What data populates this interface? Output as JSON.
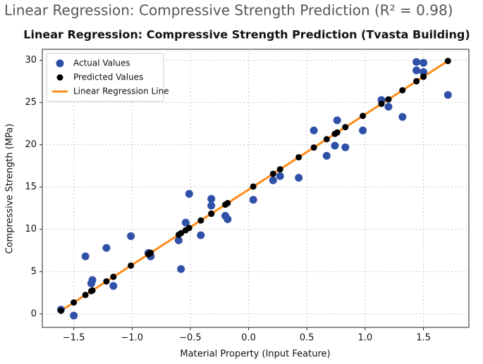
{
  "heading": "Linear Regression: Compressive Strength Prediction (R² = 0.98)",
  "chart_data": {
    "type": "scatter",
    "title": "Linear Regression: Compressive Strength Prediction (Tvasta Building)",
    "x_label": "Material Property (Input Feature)",
    "y_label": "Compressive Strength (MPa)",
    "xlim": [
      -1.77,
      1.89
    ],
    "ylim": [
      -1.6,
      31.3
    ],
    "xticks": [
      {
        "value": -1.5,
        "label": "−1.5"
      },
      {
        "value": -1.0,
        "label": "−1.0"
      },
      {
        "value": -0.5,
        "label": "−0.5"
      },
      {
        "value": 0.0,
        "label": "0.0"
      },
      {
        "value": 0.5,
        "label": "0.5"
      },
      {
        "value": 1.0,
        "label": "1.0"
      },
      {
        "value": 1.5,
        "label": "1.5"
      }
    ],
    "yticks": [
      0,
      5,
      10,
      15,
      20,
      25,
      30
    ],
    "grid": true,
    "legend": "upper-left",
    "series": [
      {
        "name": "Actual Values",
        "type": "scatter",
        "color": "#2f50a8",
        "x": [
          -1.61,
          -1.5,
          -1.4,
          -1.35,
          -1.34,
          -1.22,
          -1.16,
          -1.01,
          -0.86,
          -0.84,
          -0.6,
          -0.58,
          -0.54,
          -0.51,
          -0.41,
          -0.32,
          -0.32,
          -0.2,
          -0.18,
          0.04,
          0.21,
          0.27,
          0.43,
          0.56,
          0.67,
          0.74,
          0.76,
          0.83,
          0.98,
          1.14,
          1.2,
          1.32,
          1.44,
          1.44,
          1.5,
          1.5,
          1.71
        ],
        "values": [
          0.5,
          -0.2,
          6.8,
          3.6,
          4.0,
          7.8,
          3.3,
          9.2,
          7.2,
          6.8,
          8.7,
          5.3,
          10.8,
          14.2,
          9.3,
          13.6,
          12.8,
          11.6,
          11.2,
          13.5,
          15.8,
          16.3,
          16.1,
          21.7,
          18.7,
          19.9,
          22.9,
          19.7,
          21.7,
          25.3,
          24.5,
          23.3,
          29.8,
          28.8,
          29.7,
          28.6,
          25.9
        ]
      },
      {
        "name": "Predicted Values",
        "type": "scatter",
        "color": "#000000",
        "x": [
          -1.61,
          -1.5,
          -1.4,
          -1.35,
          -1.34,
          -1.22,
          -1.16,
          -1.01,
          -0.86,
          -0.84,
          -0.6,
          -0.58,
          -0.54,
          -0.51,
          -0.41,
          -0.32,
          -0.32,
          -0.2,
          -0.18,
          0.04,
          0.21,
          0.27,
          0.43,
          0.56,
          0.67,
          0.74,
          0.76,
          0.83,
          0.98,
          1.14,
          1.2,
          1.32,
          1.44,
          1.44,
          1.5,
          1.5,
          1.71
        ],
        "values": [
          0.37,
          1.35,
          2.24,
          2.69,
          2.77,
          3.84,
          4.38,
          5.71,
          7.05,
          7.22,
          9.36,
          9.54,
          9.89,
          10.16,
          11.05,
          11.85,
          11.85,
          12.92,
          13.1,
          15.06,
          16.57,
          17.1,
          18.53,
          19.68,
          20.66,
          21.29,
          21.46,
          22.09,
          23.42,
          24.85,
          25.38,
          26.45,
          27.52,
          27.52,
          28.05,
          28.05,
          29.92
        ]
      },
      {
        "name": "Linear Regression Line",
        "type": "line",
        "color": "#ff8c1a",
        "x": [
          -1.61,
          1.71
        ],
        "values": [
          0.37,
          29.92
        ]
      }
    ]
  }
}
